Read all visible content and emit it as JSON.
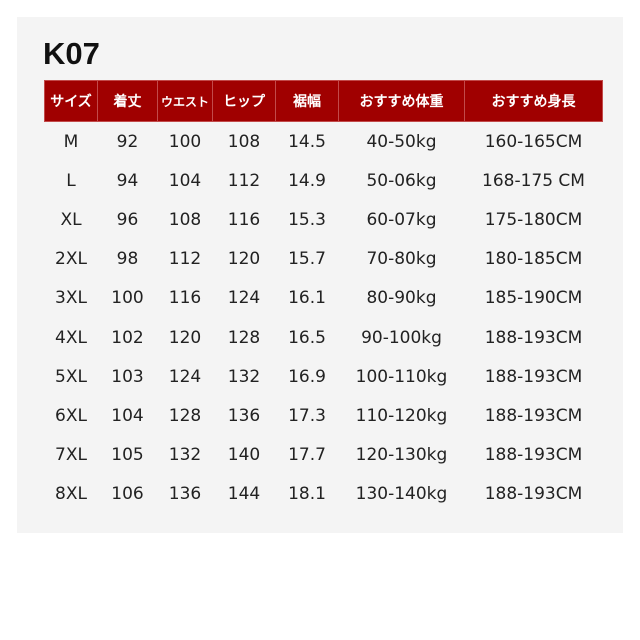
{
  "title": "K07",
  "colors": {
    "header_bg": "#a00000",
    "header_text": "#ffffff",
    "panel_bg": "#f4f4f4"
  },
  "table": {
    "headers": [
      "サイズ",
      "着丈",
      "ウエスト",
      "ヒップ",
      "裾幅",
      "おすすめ体重",
      "おすすめ身長"
    ],
    "rows": [
      [
        "M",
        "92",
        "100",
        "108",
        "14.5",
        "40-50kg",
        "160-165CM"
      ],
      [
        "L",
        "94",
        "104",
        "112",
        "14.9",
        "50-06kg",
        "168-175 CM"
      ],
      [
        "XL",
        "96",
        "108",
        "116",
        "15.3",
        "60-07kg",
        "175-180CM"
      ],
      [
        "2XL",
        "98",
        "112",
        "120",
        "15.7",
        "70-80kg",
        "180-185CM"
      ],
      [
        "3XL",
        "100",
        "116",
        "124",
        "16.1",
        "80-90kg",
        "185-190CM"
      ],
      [
        "4XL",
        "102",
        "120",
        "128",
        "16.5",
        "90-100kg",
        "188-193CM"
      ],
      [
        "5XL",
        "103",
        "124",
        "132",
        "16.9",
        "100-110kg",
        "188-193CM"
      ],
      [
        "6XL",
        "104",
        "128",
        "136",
        "17.3",
        "110-120kg",
        "188-193CM"
      ],
      [
        "7XL",
        "105",
        "132",
        "140",
        "17.7",
        "120-130kg",
        "188-193CM"
      ],
      [
        "8XL",
        "106",
        "136",
        "144",
        "18.1",
        "130-140kg",
        "188-193CM"
      ]
    ]
  }
}
